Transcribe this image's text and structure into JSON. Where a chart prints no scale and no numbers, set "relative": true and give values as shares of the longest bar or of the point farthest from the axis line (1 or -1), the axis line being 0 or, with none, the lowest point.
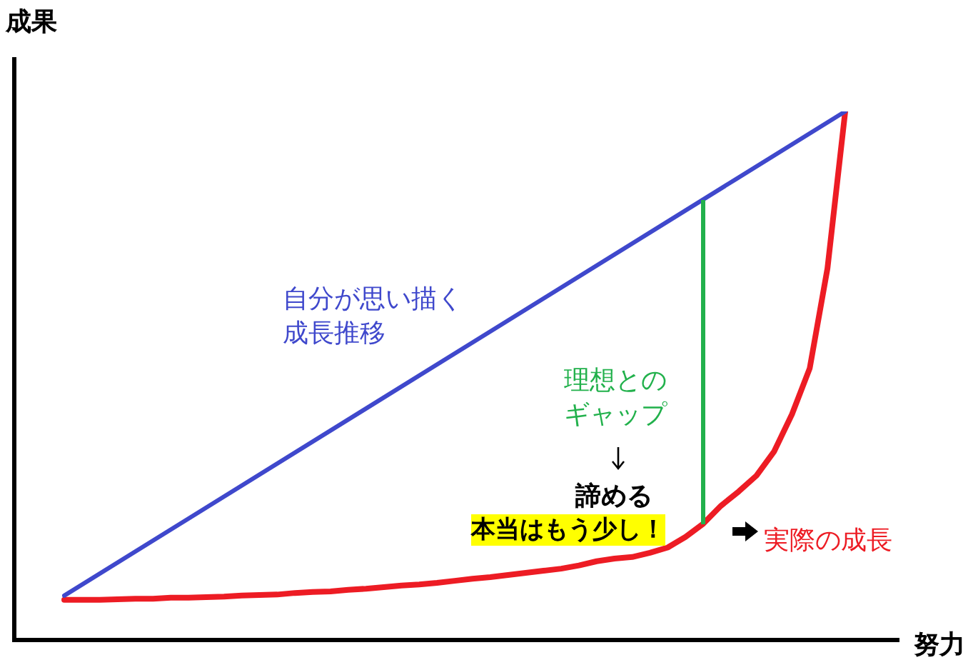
{
  "chart_data": {
    "type": "line",
    "relative": true,
    "xlabel": "努力",
    "ylabel": "成果",
    "legend": false,
    "marker": "none",
    "categories": [
      null,
      null,
      null,
      null,
      null,
      null,
      null,
      null,
      null,
      null,
      null,
      null,
      null,
      null,
      null,
      null,
      null,
      null,
      null,
      null,
      null,
      null,
      null,
      null,
      null,
      null,
      null,
      null,
      null,
      null,
      null,
      null,
      null,
      null,
      null,
      null,
      null,
      null,
      null,
      null,
      null,
      null,
      null,
      null,
      null
    ],
    "series": [
      {
        "color": "#3f48cc",
        "values": [
          0.084,
          null,
          null,
          null,
          null,
          null,
          null,
          null,
          null,
          null,
          null,
          null,
          null,
          null,
          null,
          null,
          null,
          null,
          null,
          null,
          null,
          null,
          null,
          null,
          null,
          null,
          null,
          null,
          null,
          null,
          null,
          null,
          null,
          null,
          null,
          null,
          null,
          null,
          null,
          null,
          null,
          null,
          null,
          null,
          1
        ]
      },
      {
        "color": "#ed1c24",
        "values": [
          0.076,
          0.076,
          0.076,
          0.077,
          0.078,
          0.078,
          0.08,
          0.08,
          0.081,
          0.082,
          0.084,
          0.085,
          0.086,
          0.089,
          0.091,
          0.092,
          0.095,
          0.097,
          0.1,
          0.103,
          0.105,
          0.108,
          0.112,
          0.116,
          0.119,
          0.123,
          0.127,
          0.131,
          0.135,
          0.141,
          0.149,
          0.154,
          0.157,
          0.165,
          0.175,
          0.195,
          0.22,
          0.254,
          0.281,
          0.311,
          0.357,
          0.427,
          0.514,
          0.703,
          1
        ]
      }
    ],
    "annotations": [
      "自分が思い描く成長推移",
      "理想とのギャップ",
      "諦める",
      "本当はもう少し！",
      "実際の成長"
    ]
  }
}
